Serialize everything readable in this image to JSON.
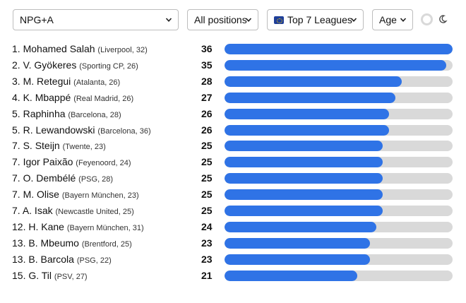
{
  "controls": {
    "metric": "NPG+A",
    "positions": "All positions",
    "leagues": "Top 7 Leagues",
    "sort": "Age"
  },
  "colors": {
    "bar": "#2f73e6",
    "track": "#d9d9d9"
  },
  "icons": [
    "chevron-down-icon",
    "eu-flag-icon",
    "moon-icon"
  ],
  "chart_data": {
    "type": "bar",
    "orientation": "horizontal",
    "xlim": [
      0,
      36
    ],
    "grid": false,
    "rows": [
      {
        "rank": "1.",
        "name": "Mohamed Salah",
        "meta": "(Liverpool, 32)",
        "value": 36
      },
      {
        "rank": "2.",
        "name": "V. Gyökeres",
        "meta": "(Sporting CP, 26)",
        "value": 35
      },
      {
        "rank": "3.",
        "name": "M. Retegui",
        "meta": "(Atalanta, 26)",
        "value": 28
      },
      {
        "rank": "4.",
        "name": "K. Mbappé",
        "meta": "(Real Madrid, 26)",
        "value": 27
      },
      {
        "rank": "5.",
        "name": "Raphinha",
        "meta": "(Barcelona, 28)",
        "value": 26
      },
      {
        "rank": "5.",
        "name": "R. Lewandowski",
        "meta": "(Barcelona, 36)",
        "value": 26
      },
      {
        "rank": "7.",
        "name": "S. Steijn",
        "meta": "(Twente, 23)",
        "value": 25
      },
      {
        "rank": "7.",
        "name": "Igor Paixão",
        "meta": "(Feyenoord, 24)",
        "value": 25
      },
      {
        "rank": "7.",
        "name": "O. Dembélé",
        "meta": "(PSG, 28)",
        "value": 25
      },
      {
        "rank": "7.",
        "name": "M. Olise",
        "meta": "(Bayern München, 23)",
        "value": 25
      },
      {
        "rank": "7.",
        "name": "A. Isak",
        "meta": "(Newcastle United, 25)",
        "value": 25
      },
      {
        "rank": "12.",
        "name": "H. Kane",
        "meta": "(Bayern München, 31)",
        "value": 24
      },
      {
        "rank": "13.",
        "name": "B. Mbeumo",
        "meta": "(Brentford, 25)",
        "value": 23
      },
      {
        "rank": "13.",
        "name": "B. Barcola",
        "meta": "(PSG, 22)",
        "value": 23
      },
      {
        "rank": "15.",
        "name": "G. Til",
        "meta": "(PSV, 27)",
        "value": 21
      }
    ]
  }
}
